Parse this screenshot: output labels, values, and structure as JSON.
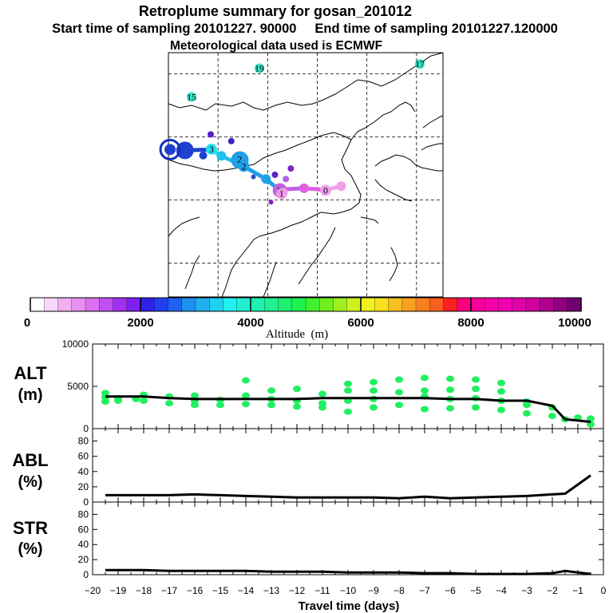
{
  "titles": {
    "line1": "Retroplume summary for gosan_201012",
    "line2": "Start time of sampling 20101227. 90000     End time of sampling 20101227.120000",
    "line3": "Meteorological data used is ECMWF"
  },
  "map": {
    "day_labels": [
      {
        "text": "0",
        "lon": 122.5,
        "lat": 32.3,
        "color": "#f0a0e8"
      },
      {
        "text": "1",
        "lon": 108.3,
        "lat": 32.3,
        "color": "#c060e0"
      },
      {
        "text": "1",
        "lon": 109.2,
        "lat": 31.5,
        "color": "#f0a0e8"
      },
      {
        "text": "2",
        "lon": 96.5,
        "lat": 39.7,
        "color": "#20a0e8"
      },
      {
        "text": "2",
        "lon": 97.8,
        "lat": 38.0,
        "color": "#20a0e8"
      },
      {
        "text": "3",
        "lon": 88.0,
        "lat": 42.1,
        "color": "#20e0f0"
      },
      {
        "text": "15",
        "lon": 82.0,
        "lat": 54.5,
        "color": "#20e0c0"
      },
      {
        "text": "19",
        "lon": 102.5,
        "lat": 61.3,
        "color": "#20e0c0"
      },
      {
        "text": "17",
        "lon": 151.0,
        "lat": 62.3,
        "color": "#20e0c0"
      }
    ],
    "track": [
      {
        "lon": 127.2,
        "lat": 33.3,
        "color": "#f0a0e8"
      },
      {
        "lon": 122.5,
        "lat": 32.4,
        "color": "#f0a0e8"
      },
      {
        "lon": 116.0,
        "lat": 32.8,
        "color": "#e060e0"
      },
      {
        "lon": 108.3,
        "lat": 32.5,
        "color": "#c060e0"
      },
      {
        "lon": 104.5,
        "lat": 35.0,
        "color": "#20a0e8"
      },
      {
        "lon": 97.8,
        "lat": 38.0,
        "color": "#20a0e8"
      },
      {
        "lon": 91.0,
        "lat": 40.5,
        "color": "#20c0f0"
      },
      {
        "lon": 88.0,
        "lat": 42.0,
        "color": "#20e0f0"
      },
      {
        "lon": 80.0,
        "lat": 41.8,
        "color": "#2040d0"
      }
    ]
  },
  "colorbar": {
    "ticks": [
      "0",
      "2000",
      "4000",
      "6000",
      "8000",
      "10000"
    ],
    "label": "Altitude  (m)",
    "colors": [
      "#ffffff",
      "#f8d8f8",
      "#f0b0f0",
      "#e890f0",
      "#d870f0",
      "#c050f0",
      "#a030f0",
      "#8020f0",
      "#3020e8",
      "#2040f0",
      "#2060f0",
      "#2090f0",
      "#20b0f0",
      "#20d0f0",
      "#20f0f0",
      "#20f0d0",
      "#20f0b0",
      "#20f090",
      "#20f070",
      "#20f050",
      "#40f030",
      "#70f020",
      "#a0f020",
      "#d0f020",
      "#f0f020",
      "#f8e020",
      "#f8c020",
      "#f8a020",
      "#f88020",
      "#f86020",
      "#f82020",
      "#f80080",
      "#f80098",
      "#f800a8",
      "#f000b0",
      "#e000a8",
      "#d000a0",
      "#b00090",
      "#900080",
      "#700070"
    ]
  },
  "chart_data": [
    {
      "type": "line",
      "name": "ALT",
      "ylabel": "ALT\n(m)",
      "title": "",
      "ylim": [
        0,
        10000
      ],
      "yticks": [
        "0",
        "5000",
        "10000"
      ],
      "x": [
        -19.5,
        -19,
        -18,
        -17,
        -16,
        -15,
        -14,
        -13,
        -12,
        -11,
        -10,
        -9,
        -8,
        -7,
        -6,
        -5,
        -4,
        -3,
        -2.5,
        -2,
        -1.5,
        -0.5
      ],
      "series": [
        {
          "name": "mean altitude (m)",
          "values": [
            3800,
            3800,
            3800,
            3600,
            3500,
            3500,
            3500,
            3500,
            3500,
            3600,
            3600,
            3600,
            3600,
            3600,
            3500,
            3500,
            3300,
            3300,
            3000,
            2700,
            1100,
            800
          ]
        }
      ],
      "scatter": [
        [
          -19.5,
          3200
        ],
        [
          -19.5,
          3700
        ],
        [
          -19.5,
          4200
        ],
        [
          -19,
          3300
        ],
        [
          -19,
          3600
        ],
        [
          -18.3,
          3500
        ],
        [
          -18,
          3300
        ],
        [
          -18,
          4000
        ],
        [
          -17,
          3000
        ],
        [
          -17,
          3800
        ],
        [
          -16,
          2800
        ],
        [
          -16,
          3300
        ],
        [
          -16,
          3900
        ],
        [
          -15,
          2800
        ],
        [
          -15,
          3400
        ],
        [
          -14,
          2900
        ],
        [
          -14,
          3900
        ],
        [
          -14,
          5700
        ],
        [
          -13,
          2800
        ],
        [
          -13,
          3500
        ],
        [
          -13,
          4500
        ],
        [
          -12,
          2600
        ],
        [
          -12,
          3300
        ],
        [
          -12,
          4700
        ],
        [
          -11,
          2500
        ],
        [
          -11,
          3000
        ],
        [
          -11,
          4100
        ],
        [
          -10,
          2000
        ],
        [
          -10,
          3300
        ],
        [
          -10,
          4500
        ],
        [
          -10,
          5300
        ],
        [
          -9,
          2500
        ],
        [
          -9,
          3500
        ],
        [
          -9,
          4500
        ],
        [
          -9,
          5500
        ],
        [
          -8,
          2800
        ],
        [
          -8,
          4300
        ],
        [
          -8,
          5800
        ],
        [
          -7,
          2300
        ],
        [
          -7,
          3800
        ],
        [
          -7,
          4500
        ],
        [
          -7,
          6000
        ],
        [
          -6,
          2400
        ],
        [
          -6,
          3500
        ],
        [
          -6,
          4600
        ],
        [
          -6,
          5900
        ],
        [
          -5,
          2500
        ],
        [
          -5,
          3600
        ],
        [
          -5,
          4700
        ],
        [
          -5,
          5800
        ],
        [
          -4,
          2200
        ],
        [
          -4,
          3300
        ],
        [
          -4,
          4400
        ],
        [
          -4,
          5400
        ],
        [
          -3,
          2800
        ],
        [
          -3,
          3200
        ],
        [
          -3,
          1800
        ],
        [
          -2,
          2500
        ],
        [
          -2,
          1500
        ],
        [
          -1.5,
          1100
        ],
        [
          -1,
          1300
        ],
        [
          -0.5,
          500
        ],
        [
          -0.5,
          1200
        ]
      ],
      "xlim": [
        -20,
        0
      ]
    },
    {
      "type": "line",
      "name": "ABL",
      "ylabel": "ABL\n(%)",
      "ylim": [
        0,
        90
      ],
      "yticks": [
        "0",
        "20",
        "40",
        "60",
        "80"
      ],
      "x": [
        -19.5,
        -18,
        -17,
        -16,
        -15,
        -14,
        -13,
        -12,
        -11,
        -10,
        -9,
        -8,
        -7,
        -6,
        -5,
        -4,
        -3,
        -2,
        -1.5,
        -0.5
      ],
      "series": [
        {
          "name": "ABL fraction (%)",
          "values": [
            9,
            9,
            9,
            10,
            9,
            8,
            7,
            6,
            6,
            6,
            6,
            5,
            7,
            5,
            6,
            7,
            8,
            10,
            11,
            35
          ]
        }
      ],
      "xlim": [
        -20,
        0
      ]
    },
    {
      "type": "line",
      "name": "STR",
      "ylabel": "STR\n(%)",
      "xlabel": "Travel time (days)",
      "ylim": [
        0,
        90
      ],
      "yticks": [
        "0",
        "20",
        "40",
        "60",
        "80"
      ],
      "xticks": [
        "−20",
        "−19",
        "−18",
        "−17",
        "−16",
        "−15",
        "−14",
        "−13",
        "−12",
        "−11",
        "−10",
        "−9",
        "−8",
        "−7",
        "−6",
        "−5",
        "−4",
        "−3",
        "−2",
        "−1",
        "0"
      ],
      "x": [
        -19.5,
        -18,
        -17,
        -16,
        -15,
        -14,
        -13,
        -12,
        -11,
        -10,
        -9,
        -8,
        -7,
        -6,
        -5,
        -4,
        -3,
        -2,
        -1.5,
        -1,
        -0.5
      ],
      "series": [
        {
          "name": "stratospheric fraction (%)",
          "values": [
            6,
            6,
            5,
            5,
            5,
            5,
            4,
            4,
            4,
            3,
            3,
            3,
            2,
            2,
            1,
            1,
            1,
            2,
            5,
            3,
            1
          ]
        }
      ],
      "xlim": [
        -20,
        0
      ]
    }
  ]
}
